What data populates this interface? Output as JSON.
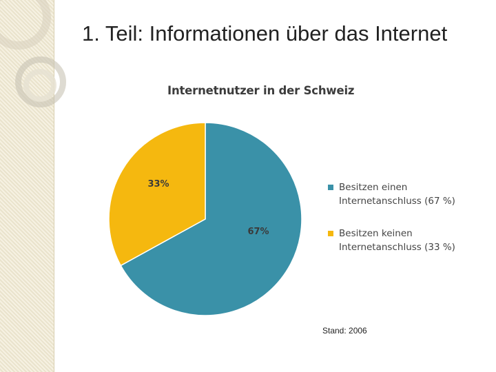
{
  "slide": {
    "title": "1. Teil: Informationen über das Internet",
    "note": "Stand: 2006"
  },
  "chart_data": {
    "type": "pie",
    "title": "Internetnutzer in der Schweiz",
    "slices": [
      {
        "name": "Besitzen einen\nInternetanschluss (67 %)",
        "value": 67,
        "label": "67%",
        "color": "#3a91a8"
      },
      {
        "name": "Besitzen keinen\nInternetanschluss (33 %)",
        "value": 33,
        "label": "33%",
        "color": "#f5b80f"
      }
    ],
    "legend": "right"
  }
}
